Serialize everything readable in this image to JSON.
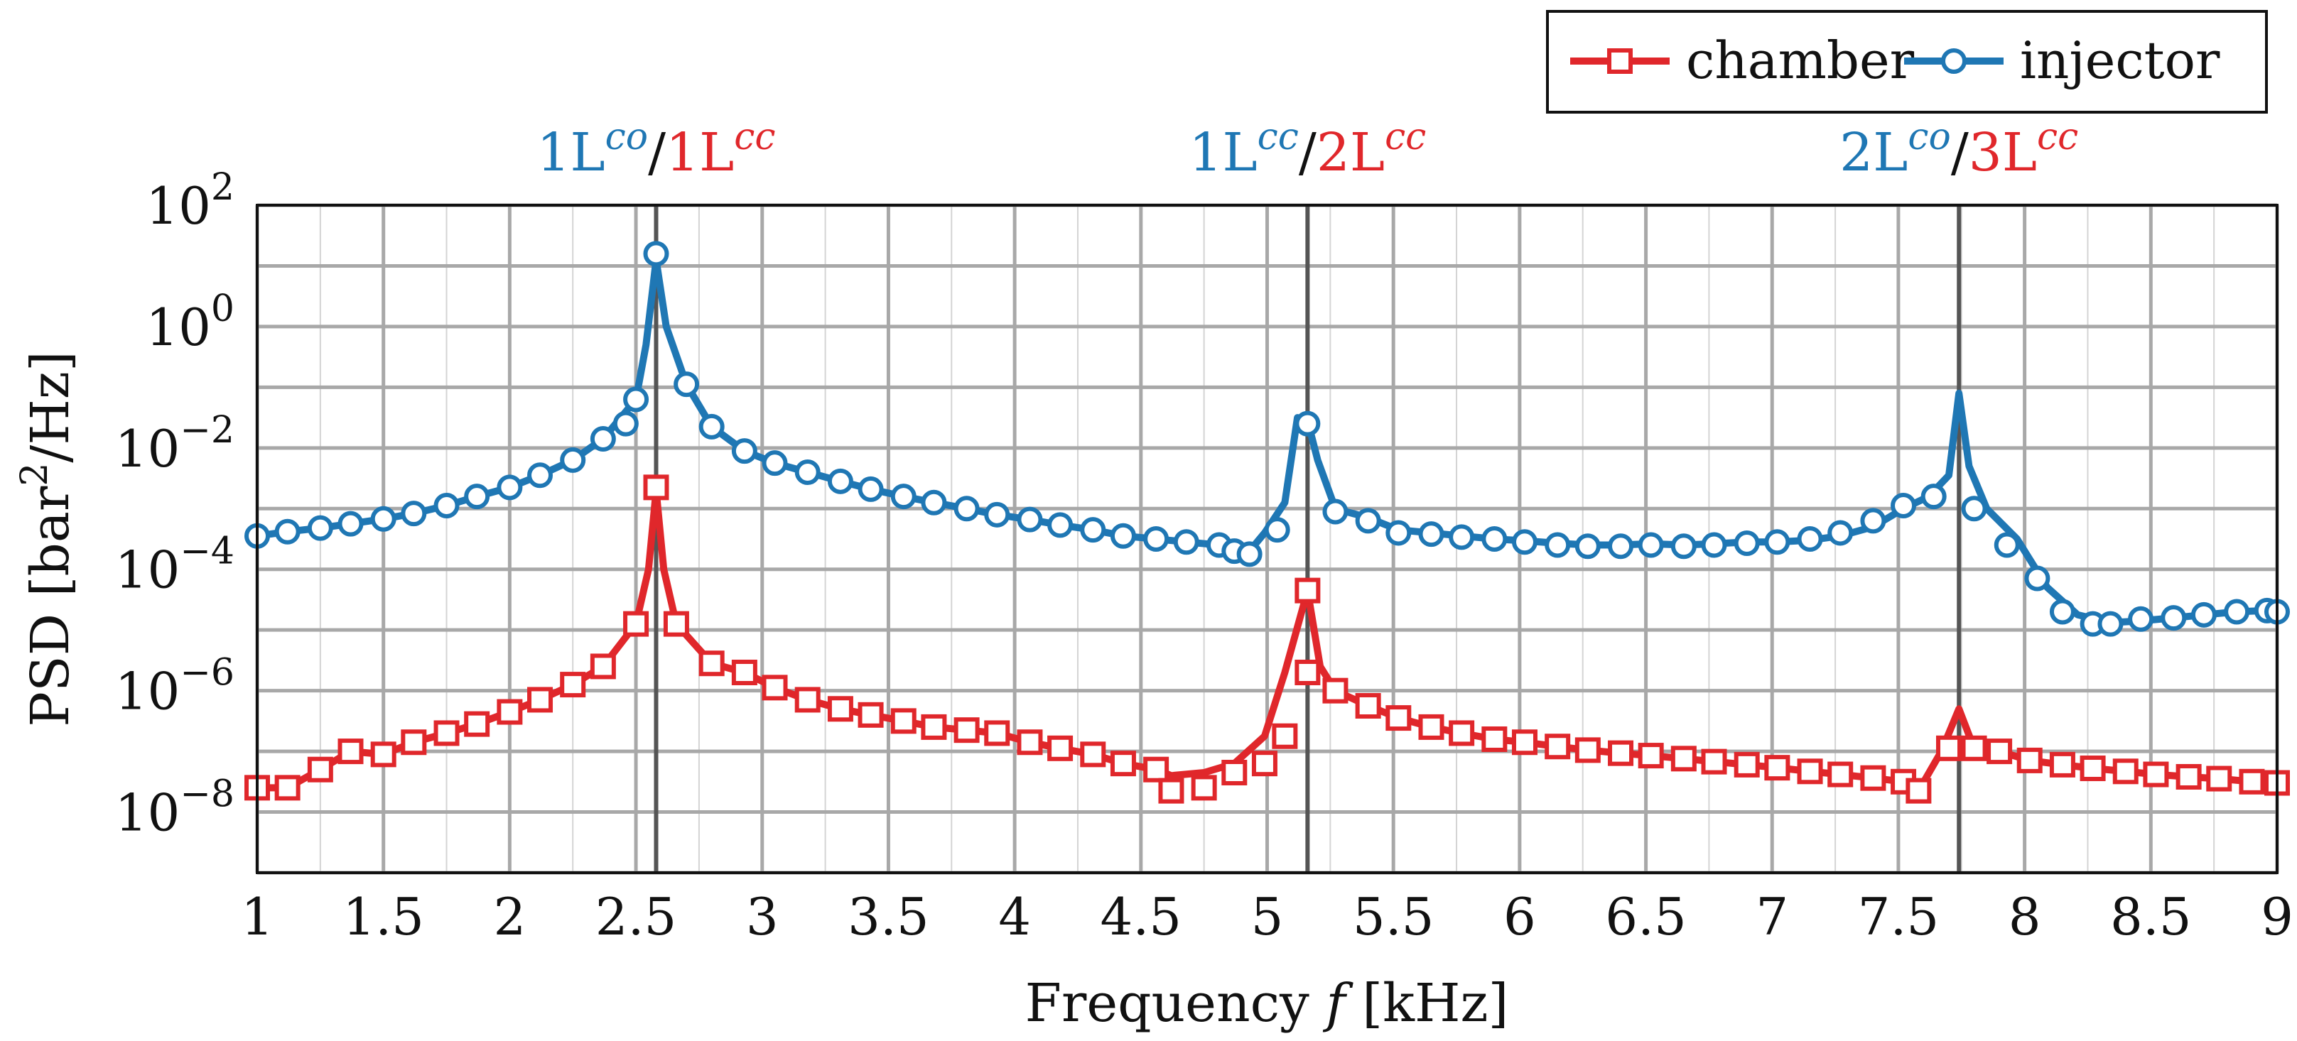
{
  "chart_data": {
    "type": "line",
    "xlabel": "Frequency f [kHz]",
    "ylabel": "PSD [bar²/Hz]",
    "xlim": [
      1,
      9
    ],
    "ylim_log10": [
      -9,
      2
    ],
    "yscale": "log",
    "grid": true,
    "legend_position": "top-right",
    "x_ticks": [
      1,
      1.5,
      2,
      2.5,
      3,
      3.5,
      4,
      4.5,
      5,
      5.5,
      6,
      6.5,
      7,
      7.5,
      8,
      8.5,
      9
    ],
    "x_tick_labels": [
      "1",
      "1.5",
      "2",
      "2.5",
      "3",
      "3.5",
      "4",
      "4.5",
      "5",
      "5.5",
      "6",
      "6.5",
      "7",
      "7.5",
      "8",
      "8.5",
      "9"
    ],
    "y_tick_exponents": [
      -8,
      -6,
      -4,
      -2,
      0,
      2
    ],
    "y_tick_base": "10",
    "minor_y_exponents": [
      -9,
      -7,
      -5,
      -3,
      -1,
      1
    ],
    "minor_x_ticks": [
      1.25,
      1.75,
      2.25,
      2.75,
      3.25,
      3.75,
      4.25,
      4.75,
      5.25,
      5.75,
      6.25,
      6.75,
      7.25,
      7.75,
      8.25,
      8.75
    ],
    "peak_lines": [
      {
        "x": 2.58,
        "label_left": "1L",
        "sup_left": "co",
        "label_right": "1L",
        "sup_right": "cc"
      },
      {
        "x": 5.16,
        "label_left": "1L",
        "sup_left": "cc",
        "label_right": "2L",
        "sup_right": "cc"
      },
      {
        "x": 7.74,
        "label_left": "2L",
        "sup_left": "co",
        "label_right": "3L",
        "sup_right": "cc"
      }
    ],
    "series": [
      {
        "name": "chamber",
        "color": "#e0272b",
        "marker": "square",
        "x": [
          1.0,
          1.12,
          1.25,
          1.37,
          1.5,
          1.62,
          1.75,
          1.87,
          2.0,
          2.12,
          2.25,
          2.37,
          2.5,
          2.55,
          2.58,
          2.61,
          2.66,
          2.8,
          2.93,
          3.05,
          3.18,
          3.31,
          3.43,
          3.56,
          3.68,
          3.81,
          3.93,
          4.06,
          4.18,
          4.31,
          4.43,
          4.56,
          4.62,
          4.75,
          4.87,
          4.99,
          5.07,
          5.16,
          5.21,
          5.27,
          5.4,
          5.52,
          5.65,
          5.77,
          5.9,
          6.02,
          6.15,
          6.27,
          6.4,
          6.52,
          6.65,
          6.77,
          6.9,
          7.02,
          7.15,
          7.27,
          7.4,
          7.52,
          7.58,
          7.67,
          7.74,
          7.8,
          7.9,
          8.02,
          8.15,
          8.27,
          8.4,
          8.52,
          8.65,
          8.77,
          8.9,
          9.0
        ],
        "log10_values": [
          -7.6,
          -7.6,
          -7.3,
          -7.0,
          -7.05,
          -6.85,
          -6.7,
          -6.55,
          -6.35,
          -6.15,
          -5.9,
          -5.6,
          -4.9,
          -4.0,
          -2.7,
          -4.0,
          -4.9,
          -5.55,
          -5.7,
          -5.95,
          -6.15,
          -6.3,
          -6.4,
          -6.5,
          -6.6,
          -6.65,
          -6.7,
          -6.85,
          -6.95,
          -7.05,
          -7.2,
          -7.3,
          -7.4,
          -7.35,
          -7.2,
          -6.75,
          -5.7,
          -4.35,
          -5.6,
          -6.0,
          -6.25,
          -6.45,
          -6.6,
          -6.7,
          -6.8,
          -6.85,
          -6.92,
          -6.98,
          -7.03,
          -7.07,
          -7.12,
          -7.17,
          -7.22,
          -7.27,
          -7.33,
          -7.38,
          -7.44,
          -7.5,
          -7.65,
          -7.0,
          -6.3,
          -6.95,
          -7.0,
          -7.15,
          -7.22,
          -7.28,
          -7.33,
          -7.38,
          -7.42,
          -7.45,
          -7.5,
          -7.52
        ],
        "marker_log10_values": [
          -7.6,
          -7.6,
          -7.3,
          -7.0,
          -7.05,
          -6.85,
          -6.7,
          -6.55,
          -6.35,
          -6.15,
          -5.9,
          -5.6,
          -4.9,
          -2.65,
          -4.9,
          -5.55,
          -5.7,
          -5.95,
          -6.15,
          -6.3,
          -6.4,
          -6.5,
          -6.6,
          -6.65,
          -6.7,
          -6.85,
          -6.95,
          -7.05,
          -7.2,
          -7.3,
          -7.65,
          -7.6,
          -7.35,
          -7.2,
          -6.75,
          -5.7,
          -4.35,
          -6.0,
          -6.25,
          -6.45,
          -6.6,
          -6.7,
          -6.8,
          -6.85,
          -6.92,
          -6.98,
          -7.03,
          -7.07,
          -7.12,
          -7.17,
          -7.22,
          -7.27,
          -7.33,
          -7.38,
          -7.44,
          -7.5,
          -7.65,
          -6.95,
          -6.95,
          -7.0,
          -7.15,
          -7.22,
          -7.28,
          -7.33,
          -7.38,
          -7.42,
          -7.45,
          -7.5,
          -7.52
        ],
        "marker_x": [
          1.0,
          1.12,
          1.25,
          1.37,
          1.5,
          1.62,
          1.75,
          1.87,
          2.0,
          2.12,
          2.25,
          2.37,
          2.5,
          2.58,
          2.66,
          2.8,
          2.93,
          3.05,
          3.18,
          3.31,
          3.43,
          3.56,
          3.68,
          3.81,
          3.93,
          4.06,
          4.18,
          4.31,
          4.43,
          4.56,
          4.62,
          4.75,
          4.87,
          4.99,
          5.07,
          5.16,
          5.16,
          5.27,
          5.4,
          5.52,
          5.65,
          5.77,
          5.9,
          6.02,
          6.15,
          6.27,
          6.4,
          6.52,
          6.65,
          6.77,
          6.9,
          7.02,
          7.15,
          7.27,
          7.4,
          7.52,
          7.58,
          7.7,
          7.8,
          7.9,
          8.02,
          8.15,
          8.27,
          8.4,
          8.52,
          8.65,
          8.77,
          8.9,
          9.0
        ]
      },
      {
        "name": "injector",
        "color": "#1f77b4",
        "marker": "circle",
        "x": [
          1.0,
          1.12,
          1.25,
          1.37,
          1.5,
          1.62,
          1.75,
          1.87,
          2.0,
          2.12,
          2.25,
          2.37,
          2.5,
          2.54,
          2.58,
          2.62,
          2.7,
          2.8,
          2.93,
          3.05,
          3.18,
          3.31,
          3.43,
          3.56,
          3.68,
          3.81,
          3.93,
          4.06,
          4.18,
          4.31,
          4.43,
          4.56,
          4.68,
          4.81,
          4.93,
          4.99,
          5.07,
          5.12,
          5.16,
          5.2,
          5.27,
          5.4,
          5.52,
          5.65,
          5.77,
          5.9,
          6.02,
          6.15,
          6.27,
          6.4,
          6.52,
          6.65,
          6.77,
          6.9,
          7.02,
          7.15,
          7.27,
          7.4,
          7.52,
          7.62,
          7.7,
          7.74,
          7.78,
          7.85,
          7.97,
          8.09,
          8.21,
          8.34,
          8.46,
          8.59,
          8.71,
          8.84,
          8.96,
          9.0
        ],
        "log10_values": [
          -3.45,
          -3.38,
          -3.32,
          -3.25,
          -3.17,
          -3.08,
          -2.95,
          -2.8,
          -2.65,
          -2.45,
          -2.2,
          -1.85,
          -1.2,
          -0.3,
          1.1,
          0.0,
          -0.95,
          -1.65,
          -2.05,
          -2.25,
          -2.4,
          -2.55,
          -2.68,
          -2.8,
          -2.9,
          -3.0,
          -3.1,
          -3.18,
          -3.27,
          -3.35,
          -3.45,
          -3.5,
          -3.55,
          -3.6,
          -3.7,
          -3.4,
          -2.9,
          -1.5,
          -1.55,
          -2.2,
          -3.0,
          -3.15,
          -3.35,
          -3.4,
          -3.45,
          -3.5,
          -3.53,
          -3.57,
          -3.6,
          -3.6,
          -3.58,
          -3.6,
          -3.58,
          -3.55,
          -3.55,
          -3.52,
          -3.45,
          -3.3,
          -3.0,
          -2.8,
          -2.45,
          -1.1,
          -2.3,
          -3.0,
          -3.5,
          -4.3,
          -4.75,
          -4.88,
          -4.85,
          -4.8,
          -4.75,
          -4.7,
          -4.68,
          -4.7
        ],
        "marker_log10_values": [
          -3.45,
          -3.38,
          -3.32,
          -3.25,
          -3.17,
          -3.08,
          -2.95,
          -2.8,
          -2.65,
          -2.45,
          -2.2,
          -1.85,
          -1.6,
          -1.2,
          1.2,
          -0.95,
          -1.65,
          -2.05,
          -2.25,
          -2.4,
          -2.55,
          -2.68,
          -2.8,
          -2.9,
          -3.0,
          -3.1,
          -3.18,
          -3.27,
          -3.35,
          -3.45,
          -3.5,
          -3.55,
          -3.6,
          -3.7,
          -3.75,
          -3.35,
          -1.6,
          -3.05,
          -3.2,
          -3.4,
          -3.42,
          -3.47,
          -3.5,
          -3.55,
          -3.6,
          -3.62,
          -3.62,
          -3.6,
          -3.62,
          -3.6,
          -3.57,
          -3.55,
          -3.5,
          -3.4,
          -3.2,
          -2.95,
          -2.8,
          -3.0,
          -3.6,
          -4.15,
          -4.7,
          -4.9,
          -4.9,
          -4.82,
          -4.8,
          -4.75,
          -4.7,
          -4.68,
          -4.7
        ],
        "marker_x": [
          1.0,
          1.12,
          1.25,
          1.37,
          1.5,
          1.62,
          1.75,
          1.87,
          2.0,
          2.12,
          2.25,
          2.37,
          2.46,
          2.5,
          2.58,
          2.7,
          2.8,
          2.93,
          3.05,
          3.18,
          3.31,
          3.43,
          3.56,
          3.68,
          3.81,
          3.93,
          4.06,
          4.18,
          4.31,
          4.43,
          4.56,
          4.68,
          4.81,
          4.87,
          4.93,
          5.04,
          5.16,
          5.27,
          5.4,
          5.52,
          5.65,
          5.77,
          5.9,
          6.02,
          6.15,
          6.27,
          6.4,
          6.52,
          6.65,
          6.77,
          6.9,
          7.02,
          7.15,
          7.27,
          7.4,
          7.52,
          7.64,
          7.8,
          7.93,
          8.05,
          8.15,
          8.27,
          8.34,
          8.46,
          8.59,
          8.71,
          8.84,
          8.96,
          9.0
        ]
      }
    ]
  }
}
